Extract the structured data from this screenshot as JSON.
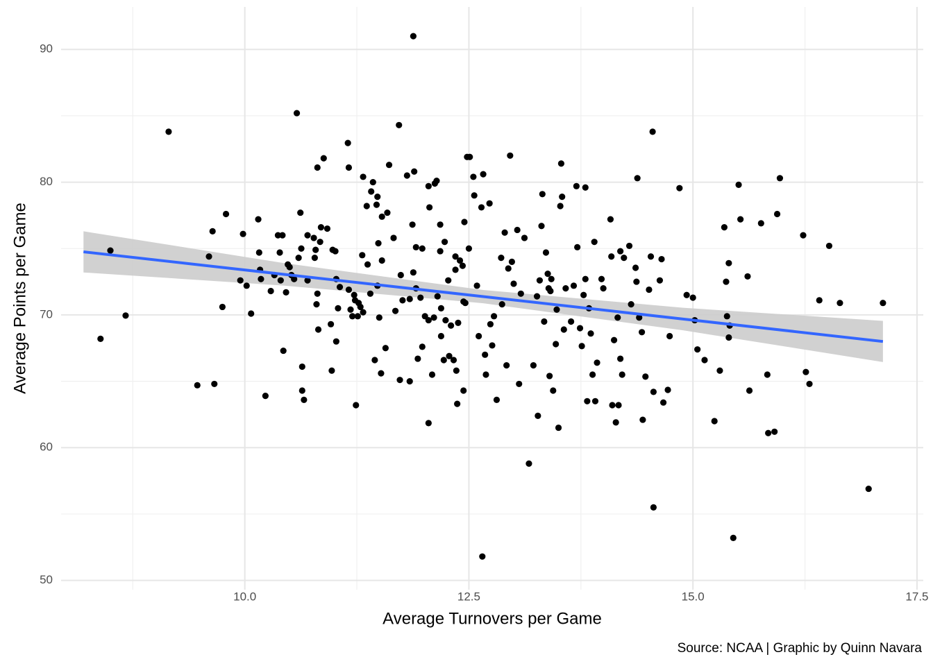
{
  "chart_data": {
    "type": "scatter",
    "xlabel": "Average Turnovers per Game",
    "ylabel": "Average Points per Game",
    "caption": "Source: NCAA | Graphic by Quinn Navara",
    "xlim": [
      7.95,
      17.57
    ],
    "ylim": [
      49.3,
      93.2
    ],
    "xticks": [
      {
        "value": 10,
        "label": "10.0"
      },
      12.5,
      {
        "value": 15,
        "label": "15.0"
      },
      17.5
    ],
    "yticks": [
      50,
      60,
      70,
      80,
      90
    ],
    "x_minor_grid": [
      8.75,
      11.25,
      13.75,
      16.25
    ],
    "y_minor_grid": [
      55,
      65,
      75,
      85
    ],
    "grid": true,
    "color": "#000000",
    "fit": {
      "color": "#3366ff",
      "band_color": "#cccccc",
      "x": [
        8.2,
        10.43,
        12.66,
        14.89,
        17.12
      ],
      "y": [
        74.75,
        73.06,
        71.38,
        69.69,
        68.0
      ],
      "lower": [
        73.2,
        72.21,
        70.88,
        68.84,
        66.45
      ],
      "upper": [
        76.3,
        73.91,
        71.88,
        70.54,
        69.55
      ]
    },
    "x": [
      8.39,
      8.5,
      8.67,
      9.15,
      9.47,
      9.6,
      9.64,
      9.66,
      9.75,
      9.79,
      9.95,
      9.98,
      10.02,
      10.07,
      10.15,
      10.16,
      10.17,
      10.18,
      10.23,
      10.29,
      10.33,
      10.37,
      10.39,
      10.4,
      10.42,
      10.43,
      10.46,
      10.48,
      10.5,
      10.52,
      10.55,
      10.58,
      10.6,
      10.62,
      10.63,
      10.64,
      10.64,
      10.66,
      10.7,
      10.7,
      10.77,
      10.78,
      10.79,
      10.8,
      10.81,
      10.81,
      10.82,
      10.84,
      10.85,
      10.88,
      10.92,
      10.96,
      10.97,
      10.98,
      11.01,
      11.02,
      11.02,
      11.04,
      11.06,
      11.15,
      11.16,
      11.16,
      11.18,
      11.2,
      11.22,
      11.23,
      11.24,
      11.26,
      11.27,
      11.29,
      11.31,
      11.32,
      11.32,
      11.36,
      11.37,
      11.4,
      11.41,
      11.43,
      11.45,
      11.47,
      11.48,
      11.48,
      11.49,
      11.5,
      11.52,
      11.53,
      11.53,
      11.57,
      11.59,
      11.61,
      11.66,
      11.68,
      11.72,
      11.73,
      11.74,
      11.76,
      11.81,
      11.84,
      11.84,
      11.87,
      11.88,
      11.88,
      11.89,
      11.91,
      11.91,
      11.93,
      11.96,
      11.98,
      11.98,
      12.01,
      12.05,
      12.05,
      12.06,
      12.05,
      12.09,
      12.11,
      12.12,
      12.14,
      12.15,
      12.18,
      12.18,
      12.19,
      12.19,
      12.22,
      12.23,
      12.24,
      12.27,
      12.28,
      12.3,
      12.33,
      12.35,
      12.35,
      12.36,
      12.37,
      12.38,
      12.4,
      12.43,
      12.44,
      12.44,
      12.45,
      12.46,
      12.48,
      12.5,
      12.51,
      12.55,
      12.56,
      12.59,
      12.61,
      12.64,
      12.65,
      12.66,
      12.68,
      12.69,
      12.73,
      12.74,
      12.76,
      12.78,
      12.81,
      12.86,
      12.87,
      12.9,
      12.92,
      12.94,
      12.96,
      12.98,
      13.0,
      13.04,
      13.06,
      13.08,
      13.12,
      13.17,
      13.22,
      13.26,
      13.27,
      13.29,
      13.31,
      13.32,
      13.34,
      13.36,
      13.38,
      13.39,
      13.4,
      13.41,
      13.42,
      13.44,
      13.47,
      13.48,
      13.5,
      13.52,
      13.53,
      13.54,
      13.56,
      13.58,
      13.64,
      13.67,
      13.7,
      13.71,
      13.74,
      13.76,
      13.78,
      13.8,
      13.8,
      13.82,
      13.84,
      13.86,
      13.88,
      13.9,
      13.91,
      13.93,
      13.98,
      14.0,
      14.08,
      14.09,
      14.1,
      14.12,
      14.14,
      14.16,
      14.17,
      14.19,
      14.19,
      14.21,
      14.23,
      14.29,
      14.31,
      14.36,
      14.37,
      14.38,
      14.4,
      14.43,
      14.44,
      14.47,
      14.51,
      14.53,
      14.55,
      14.56,
      14.56,
      14.63,
      14.65,
      14.67,
      14.72,
      14.74,
      14.85,
      14.93,
      15.0,
      15.02,
      15.05,
      15.13,
      15.24,
      15.3,
      15.35,
      15.37,
      15.4,
      15.4,
      15.41,
      15.38,
      15.45,
      15.51,
      15.53,
      15.61,
      15.63,
      15.76,
      15.83,
      15.84,
      15.91,
      15.94,
      15.97,
      16.23,
      16.26,
      16.3,
      16.41,
      16.52,
      16.64,
      16.96,
      17.12
    ],
    "values": [
      68.2,
      74.85,
      69.95,
      83.8,
      64.7,
      74.4,
      76.3,
      64.8,
      70.6,
      77.6,
      72.6,
      76.1,
      72.2,
      70.1,
      77.2,
      74.7,
      73.4,
      72.7,
      63.9,
      71.8,
      73.0,
      76.0,
      74.7,
      72.6,
      76.0,
      67.3,
      71.7,
      73.8,
      73.6,
      73.0,
      72.7,
      85.2,
      74.3,
      77.7,
      75.0,
      66.1,
      64.3,
      63.6,
      76.0,
      72.6,
      75.8,
      74.3,
      74.9,
      70.8,
      71.6,
      81.1,
      68.9,
      75.5,
      76.6,
      81.8,
      76.5,
      69.3,
      65.8,
      74.9,
      74.8,
      68.0,
      72.7,
      70.5,
      72.1,
      82.95,
      81.1,
      71.9,
      70.4,
      69.9,
      71.5,
      71.1,
      63.2,
      69.9,
      70.9,
      70.6,
      74.5,
      70.2,
      80.4,
      78.2,
      73.8,
      71.6,
      79.3,
      80.0,
      66.6,
      78.3,
      78.9,
      72.2,
      75.4,
      69.8,
      65.6,
      74.1,
      77.4,
      67.5,
      77.7,
      81.3,
      75.8,
      70.3,
      84.3,
      65.1,
      73.0,
      71.1,
      80.5,
      71.2,
      65.0,
      76.8,
      73.2,
      91.0,
      80.8,
      75.1,
      72.0,
      66.7,
      71.3,
      75.0,
      67.6,
      69.9,
      69.6,
      79.7,
      78.1,
      61.85,
      65.5,
      69.8,
      79.9,
      80.1,
      71.4,
      76.8,
      74.8,
      70.5,
      68.4,
      66.6,
      75.5,
      69.6,
      72.6,
      66.9,
      69.2,
      66.6,
      74.4,
      73.4,
      65.8,
      63.3,
      69.4,
      74.1,
      73.7,
      64.3,
      71.0,
      77.0,
      70.9,
      81.9,
      75.0,
      81.9,
      80.4,
      79.0,
      72.2,
      68.4,
      78.1,
      51.8,
      80.6,
      67.0,
      65.5,
      78.4,
      69.3,
      67.7,
      69.9,
      63.6,
      74.3,
      70.8,
      76.2,
      66.2,
      73.5,
      82.0,
      74.0,
      72.35,
      76.4,
      64.8,
      71.6,
      75.8,
      58.8,
      66.2,
      71.4,
      62.4,
      72.6,
      76.7,
      79.1,
      69.5,
      74.7,
      73.1,
      72.0,
      65.4,
      71.8,
      72.7,
      64.3,
      67.8,
      70.4,
      61.5,
      78.2,
      81.4,
      78.9,
      68.9,
      72.0,
      69.5,
      72.2,
      79.7,
      75.1,
      69.0,
      67.65,
      71.5,
      79.6,
      72.7,
      63.5,
      70.5,
      68.6,
      65.5,
      75.5,
      63.5,
      66.4,
      72.7,
      72.0,
      77.2,
      74.4,
      63.2,
      68.1,
      61.9,
      69.8,
      63.2,
      74.8,
      66.7,
      65.5,
      74.3,
      75.2,
      70.8,
      73.55,
      72.5,
      80.3,
      69.8,
      68.7,
      62.1,
      65.35,
      71.9,
      74.4,
      83.8,
      64.2,
      55.5,
      72.6,
      74.2,
      63.4,
      64.35,
      68.4,
      79.55,
      71.5,
      71.3,
      69.6,
      67.4,
      66.6,
      62.0,
      65.8,
      76.6,
      72.5,
      73.9,
      68.3,
      69.2,
      69.9,
      53.2,
      79.8,
      77.2,
      72.9,
      64.3,
      76.9,
      65.5,
      61.1,
      61.2,
      77.6,
      80.3,
      76.0,
      65.7,
      64.8,
      71.1,
      75.2,
      70.9,
      56.9,
      70.9
    ]
  }
}
